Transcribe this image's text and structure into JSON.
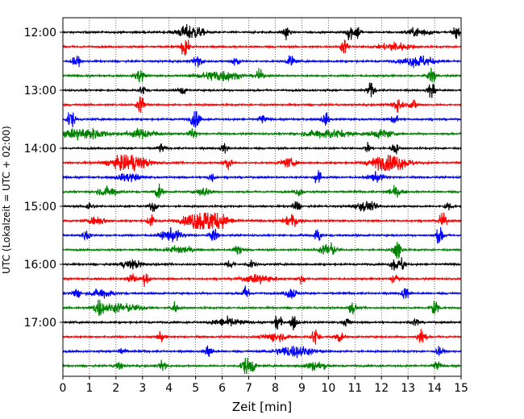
{
  "chart_data": {
    "type": "line",
    "title": "",
    "xlabel": "Zeit  [min]",
    "ylabel": "UTC (Lokalzeit = UTC + 02:00)",
    "xlim": [
      0,
      15
    ],
    "x_ticks": [
      "0",
      "1",
      "2",
      "3",
      "4",
      "5",
      "6",
      "7",
      "8",
      "9",
      "10",
      "11",
      "12",
      "13",
      "14",
      "15"
    ],
    "y_tick_labels": [
      "12:00",
      "13:00",
      "14:00",
      "15:00",
      "16:00",
      "17:00"
    ],
    "row_interval_min": 15,
    "grid": "vertical dotted at each minute",
    "row_colors": [
      "#000000",
      "#ff0000",
      "#0000ff",
      "#008000"
    ],
    "rows": [
      {
        "start": "12:00",
        "color": "#000000",
        "events": [
          [
            4.8,
            0.35,
            0.5
          ],
          [
            8.4,
            0.1,
            0.5
          ],
          [
            10.8,
            0.08,
            0.7
          ],
          [
            11.1,
            0.08,
            0.5
          ],
          [
            13.4,
            0.3,
            0.3
          ],
          [
            14.8,
            0.1,
            0.4
          ]
        ]
      },
      {
        "start": "12:15",
        "color": "#ff0000",
        "events": [
          [
            4.6,
            0.1,
            0.7
          ],
          [
            10.6,
            0.1,
            0.5
          ],
          [
            12.5,
            0.4,
            0.3
          ]
        ]
      },
      {
        "start": "12:30",
        "color": "#0000ff",
        "events": [
          [
            0.5,
            0.1,
            0.4
          ],
          [
            5.1,
            0.1,
            0.6
          ],
          [
            6.5,
            0.1,
            0.4
          ],
          [
            8.6,
            0.1,
            0.4
          ],
          [
            13.4,
            0.4,
            0.4
          ]
        ]
      },
      {
        "start": "12:45",
        "color": "#008000",
        "events": [
          [
            2.9,
            0.12,
            0.5
          ],
          [
            5.9,
            0.5,
            0.4
          ],
          [
            7.4,
            0.1,
            0.4
          ],
          [
            13.9,
            0.1,
            0.6
          ]
        ]
      },
      {
        "start": "13:00",
        "color": "#000000",
        "events": [
          [
            3.0,
            0.1,
            0.3
          ],
          [
            4.5,
            0.1,
            0.3
          ],
          [
            11.6,
            0.1,
            0.5
          ],
          [
            13.9,
            0.1,
            0.6
          ]
        ]
      },
      {
        "start": "13:15",
        "color": "#ff0000",
        "events": [
          [
            2.95,
            0.1,
            0.7
          ],
          [
            12.6,
            0.15,
            0.5
          ],
          [
            13.2,
            0.1,
            0.4
          ]
        ]
      },
      {
        "start": "13:30",
        "color": "#0000ff",
        "events": [
          [
            0.3,
            0.1,
            0.7
          ],
          [
            5.0,
            0.12,
            0.7
          ],
          [
            7.5,
            0.1,
            0.3
          ],
          [
            9.9,
            0.1,
            0.4
          ],
          [
            12.5,
            0.1,
            0.4
          ]
        ]
      },
      {
        "start": "13:45",
        "color": "#008000",
        "events": [
          [
            0.8,
            0.6,
            0.4
          ],
          [
            3.0,
            0.4,
            0.3
          ],
          [
            4.9,
            0.1,
            0.4
          ],
          [
            10.0,
            0.6,
            0.3
          ],
          [
            12.0,
            0.3,
            0.3
          ]
        ]
      },
      {
        "start": "14:00",
        "color": "#000000",
        "events": [
          [
            3.7,
            0.1,
            0.3
          ],
          [
            6.1,
            0.1,
            0.3
          ],
          [
            11.5,
            0.1,
            0.3
          ],
          [
            12.5,
            0.08,
            0.5
          ]
        ]
      },
      {
        "start": "14:15",
        "color": "#ff0000",
        "events": [
          [
            2.5,
            0.5,
            0.6
          ],
          [
            6.2,
            0.1,
            0.5
          ],
          [
            8.5,
            0.2,
            0.3
          ],
          [
            12.3,
            0.5,
            0.6
          ]
        ]
      },
      {
        "start": "14:30",
        "color": "#0000ff",
        "events": [
          [
            2.5,
            0.3,
            0.3
          ],
          [
            5.6,
            0.1,
            0.3
          ],
          [
            9.6,
            0.08,
            0.7
          ],
          [
            11.8,
            0.2,
            0.3
          ]
        ]
      },
      {
        "start": "14:45",
        "color": "#008000",
        "events": [
          [
            1.7,
            0.3,
            0.3
          ],
          [
            3.6,
            0.1,
            0.5
          ],
          [
            5.3,
            0.2,
            0.3
          ],
          [
            8.9,
            0.1,
            0.3
          ],
          [
            12.5,
            0.2,
            0.3
          ]
        ]
      },
      {
        "start": "15:00",
        "color": "#000000",
        "events": [
          [
            1.0,
            0.1,
            0.3
          ],
          [
            3.4,
            0.1,
            0.4
          ],
          [
            8.8,
            0.1,
            0.4
          ],
          [
            11.4,
            0.3,
            0.3
          ],
          [
            14.5,
            0.1,
            0.3
          ]
        ]
      },
      {
        "start": "15:15",
        "color": "#ff0000",
        "events": [
          [
            1.3,
            0.2,
            0.3
          ],
          [
            3.3,
            0.1,
            0.4
          ],
          [
            5.4,
            0.5,
            1.0
          ],
          [
            8.6,
            0.2,
            0.4
          ],
          [
            14.3,
            0.1,
            0.6
          ]
        ]
      },
      {
        "start": "15:30",
        "color": "#0000ff",
        "events": [
          [
            0.9,
            0.1,
            0.4
          ],
          [
            4.1,
            0.3,
            0.4
          ],
          [
            5.7,
            0.1,
            0.5
          ],
          [
            9.6,
            0.1,
            0.5
          ],
          [
            14.2,
            0.1,
            0.6
          ]
        ]
      },
      {
        "start": "15:45",
        "color": "#008000",
        "events": [
          [
            4.4,
            0.3,
            0.3
          ],
          [
            6.6,
            0.1,
            0.5
          ],
          [
            10.0,
            0.2,
            0.5
          ],
          [
            12.6,
            0.1,
            0.8
          ]
        ]
      },
      {
        "start": "16:00",
        "color": "#000000",
        "events": [
          [
            2.6,
            0.3,
            0.3
          ],
          [
            6.3,
            0.1,
            0.3
          ],
          [
            7.1,
            0.1,
            0.3
          ],
          [
            12.5,
            0.1,
            0.5
          ],
          [
            12.8,
            0.08,
            0.5
          ]
        ]
      },
      {
        "start": "16:15",
        "color": "#ff0000",
        "events": [
          [
            2.6,
            0.1,
            0.4
          ],
          [
            3.1,
            0.1,
            0.4
          ],
          [
            7.4,
            0.4,
            0.3
          ],
          [
            9.0,
            0.1,
            0.3
          ],
          [
            12.5,
            0.1,
            0.4
          ]
        ]
      },
      {
        "start": "16:30",
        "color": "#0000ff",
        "events": [
          [
            0.5,
            0.1,
            0.4
          ],
          [
            1.5,
            0.3,
            0.3
          ],
          [
            6.9,
            0.1,
            0.5
          ],
          [
            8.6,
            0.15,
            0.4
          ],
          [
            12.9,
            0.1,
            0.4
          ]
        ]
      },
      {
        "start": "16:45",
        "color": "#008000",
        "events": [
          [
            1.35,
            0.1,
            0.6
          ],
          [
            2.1,
            0.6,
            0.3
          ],
          [
            4.2,
            0.1,
            0.4
          ],
          [
            10.9,
            0.1,
            0.4
          ],
          [
            14.0,
            0.1,
            0.7
          ]
        ]
      },
      {
        "start": "17:00",
        "color": "#000000",
        "events": [
          [
            6.2,
            0.4,
            0.3
          ],
          [
            8.1,
            0.1,
            0.6
          ],
          [
            8.7,
            0.1,
            0.5
          ],
          [
            10.7,
            0.1,
            0.3
          ],
          [
            13.3,
            0.1,
            0.3
          ]
        ]
      },
      {
        "start": "17:15",
        "color": "#ff0000",
        "events": [
          [
            3.7,
            0.1,
            0.3
          ],
          [
            8.0,
            0.3,
            0.3
          ],
          [
            9.5,
            0.1,
            0.6
          ],
          [
            10.4,
            0.1,
            0.4
          ],
          [
            13.5,
            0.1,
            0.6
          ]
        ]
      },
      {
        "start": "17:30",
        "color": "#0000ff",
        "events": [
          [
            2.2,
            0.1,
            0.3
          ],
          [
            5.5,
            0.1,
            0.5
          ],
          [
            8.7,
            0.5,
            0.4
          ],
          [
            14.2,
            0.1,
            0.3
          ]
        ]
      },
      {
        "start": "17:45",
        "color": "#008000",
        "events": [
          [
            2.1,
            0.1,
            0.3
          ],
          [
            3.8,
            0.1,
            0.4
          ],
          [
            6.85,
            0.1,
            0.6
          ],
          [
            7.1,
            0.1,
            0.5
          ],
          [
            9.5,
            0.3,
            0.3
          ],
          [
            14.1,
            0.1,
            0.3
          ]
        ]
      }
    ]
  }
}
